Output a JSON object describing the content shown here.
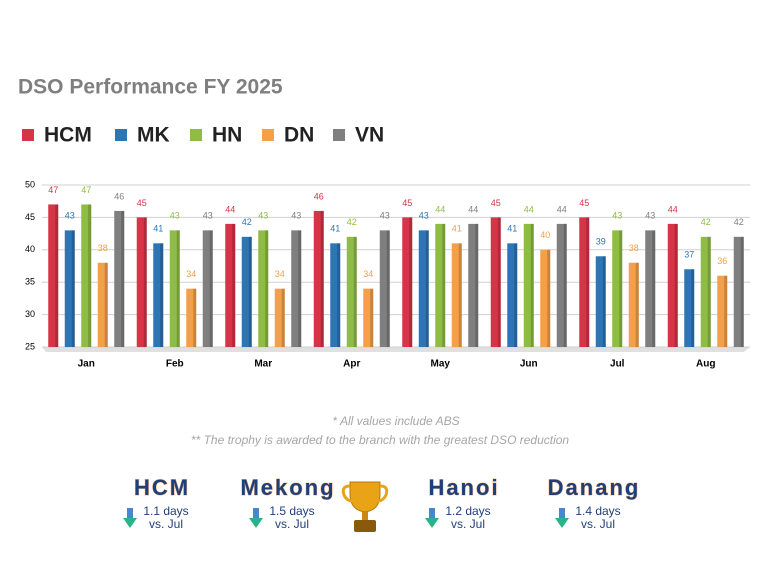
{
  "chart_data": {
    "type": "bar",
    "title": "DSO Performance FY 2025",
    "categories": [
      "Jan",
      "Feb",
      "Mar",
      "Apr",
      "May",
      "Jun",
      "Jul",
      "Aug"
    ],
    "series": [
      {
        "name": "HCM",
        "color": "#d63447",
        "values": [
          47,
          45,
          44,
          46,
          45,
          45,
          45,
          44
        ]
      },
      {
        "name": "MK",
        "color": "#2e75b6",
        "values": [
          43,
          41,
          42,
          41,
          43,
          41,
          39,
          37
        ]
      },
      {
        "name": "HN",
        "color": "#8fbc45",
        "values": [
          47,
          43,
          43,
          42,
          44,
          44,
          43,
          42
        ]
      },
      {
        "name": "DN",
        "color": "#f4a04a",
        "values": [
          38,
          34,
          34,
          34,
          41,
          40,
          38,
          36
        ]
      },
      {
        "name": "VN",
        "color": "#7f7f7f",
        "values": [
          46,
          43,
          43,
          43,
          44,
          44,
          43,
          42
        ]
      }
    ],
    "ylim": [
      25,
      50
    ],
    "yticks": [
      25,
      30,
      35,
      40,
      45,
      50
    ],
    "grid": true,
    "legend": "top"
  },
  "notes": [
    "* All values include ABS",
    "** The trophy is awarded to the branch with the greatest DSO reduction"
  ],
  "cards": [
    {
      "name": "HCM",
      "change": "1.1 days",
      "compare": "vs. Jul"
    },
    {
      "name": "Mekong",
      "change": "1.5 days",
      "compare": "vs. Jul"
    },
    {
      "name": "Hanoi",
      "change": "1.2 days",
      "compare": "vs. Jul"
    },
    {
      "name": "Danang",
      "change": "1.4 days",
      "compare": "vs. Jul"
    }
  ]
}
